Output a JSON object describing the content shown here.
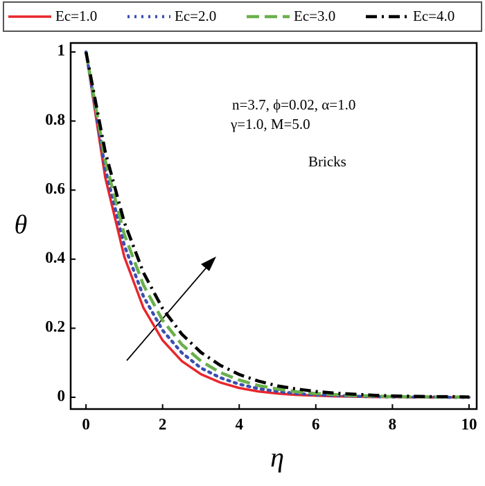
{
  "chart_data": {
    "type": "line",
    "xlabel": "η",
    "ylabel": "θ",
    "annotations": [
      "n=3.7, ϕ=0.02, α=1.0",
      "γ=1.0, M=5.0",
      "Bricks"
    ],
    "x": [
      0,
      0.5,
      1,
      1.5,
      2,
      2.5,
      3,
      3.5,
      4,
      4.5,
      5,
      5.5,
      6,
      6.5,
      7,
      7.5,
      8,
      8.5,
      9,
      9.5,
      10
    ],
    "series": [
      {
        "name": "Ec=1.0",
        "color": "#e8262c",
        "style": "solid",
        "values": [
          1,
          0.638,
          0.407,
          0.259,
          0.165,
          0.105,
          0.067,
          0.043,
          0.027,
          0.017,
          0.011,
          0.007,
          0.005,
          0.003,
          0.002,
          0.001,
          0.001,
          0,
          0,
          0,
          0
        ]
      },
      {
        "name": "Ec=2.0",
        "color": "#3a4fb0",
        "style": "dotted",
        "values": [
          1,
          0.664,
          0.44,
          0.292,
          0.194,
          0.129,
          0.085,
          0.057,
          0.038,
          0.025,
          0.017,
          0.011,
          0.007,
          0.005,
          0.003,
          0.002,
          0.001,
          0.001,
          0.001,
          0,
          0
        ]
      },
      {
        "name": "Ec=3.0",
        "color": "#6ab04c",
        "style": "dashed",
        "values": [
          1,
          0.687,
          0.472,
          0.325,
          0.223,
          0.153,
          0.105,
          0.072,
          0.05,
          0.034,
          0.024,
          0.016,
          0.011,
          0.008,
          0.005,
          0.004,
          0.002,
          0.002,
          0.001,
          0.001,
          0.001
        ]
      },
      {
        "name": "Ec=4.0",
        "color": "#000000",
        "style": "dashdot",
        "values": [
          1,
          0.712,
          0.507,
          0.361,
          0.257,
          0.183,
          0.13,
          0.093,
          0.066,
          0.047,
          0.033,
          0.024,
          0.017,
          0.012,
          0.009,
          0.006,
          0.004,
          0.003,
          0.002,
          0.002,
          0.001
        ]
      }
    ],
    "xlim": [
      -0.4,
      10.2
    ],
    "ylim": [
      -0.034,
      1.026
    ],
    "xticks": [
      0,
      2,
      4,
      6,
      8,
      10
    ],
    "yticks": [
      0,
      0.2,
      0.4,
      0.6,
      0.8,
      1
    ]
  }
}
